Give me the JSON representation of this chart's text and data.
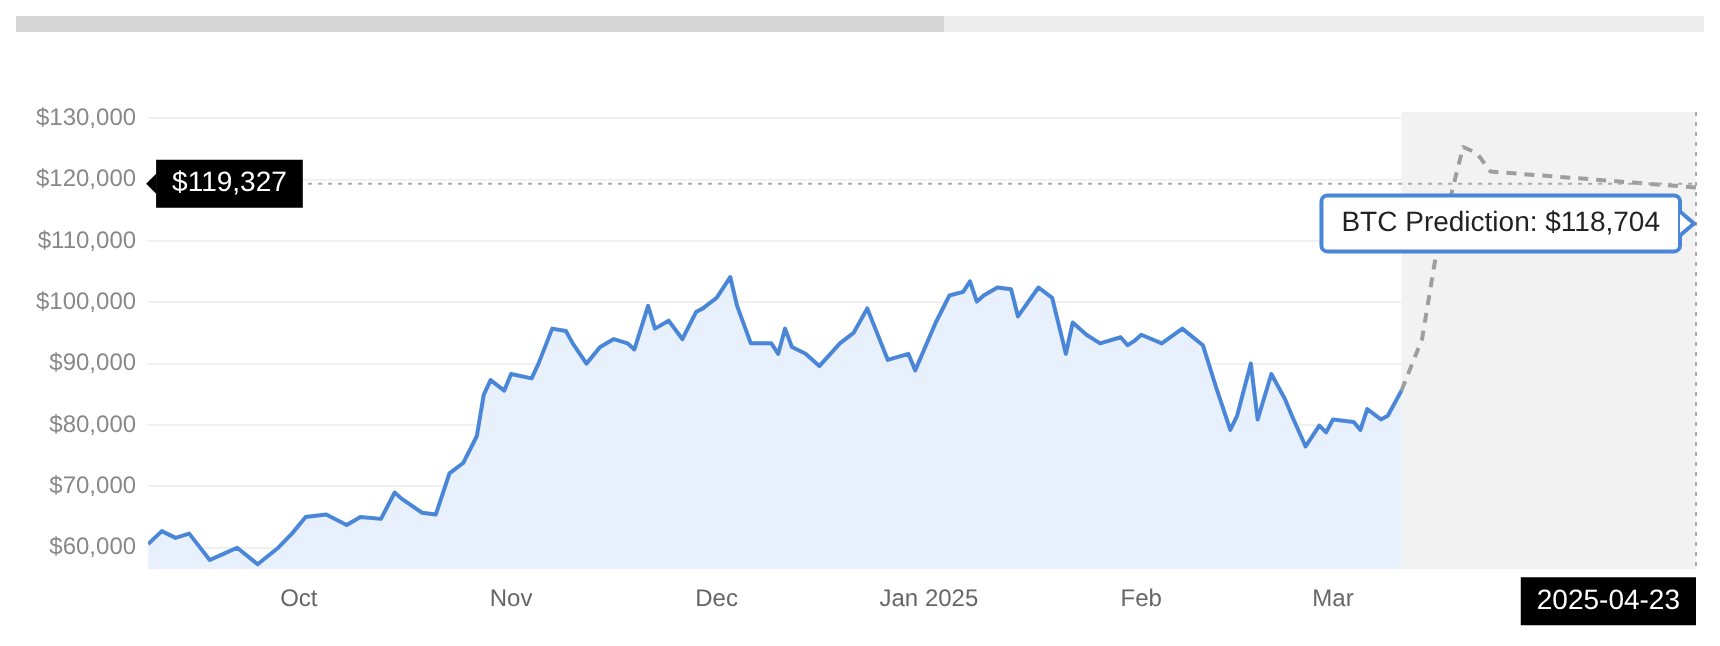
{
  "chart_data": {
    "type": "area",
    "xlim": [
      "2024-09-09",
      "2025-04-23"
    ],
    "xticks": [
      {
        "value": "2024-10-01",
        "label": "Oct"
      },
      {
        "value": "2024-11-01",
        "label": "Nov"
      },
      {
        "value": "2024-12-01",
        "label": "Dec"
      },
      {
        "value": "2025-01-01",
        "label": "Jan 2025"
      },
      {
        "value": "2025-02-01",
        "label": "Feb"
      },
      {
        "value": "2025-03-01",
        "label": "Mar"
      }
    ],
    "ylim": [
      56500,
      131000
    ],
    "yticks": [
      {
        "value": 60000,
        "label": "$60,000"
      },
      {
        "value": 70000,
        "label": "$70,000"
      },
      {
        "value": 80000,
        "label": "$80,000"
      },
      {
        "value": 90000,
        "label": "$90,000"
      },
      {
        "value": 100000,
        "label": "$100,000"
      },
      {
        "value": 110000,
        "label": "$110,000"
      },
      {
        "value": 120000,
        "label": "$120,000"
      },
      {
        "value": 130000,
        "label": "$130,000"
      }
    ],
    "grid": "y",
    "marker": "none",
    "series": [
      {
        "type": "area",
        "color": "#4a86d8",
        "x": [
          "2024-09-09",
          "2024-09-11",
          "2024-09-13",
          "2024-09-15",
          "2024-09-18",
          "2024-09-20",
          "2024-09-22",
          "2024-09-25",
          "2024-09-28",
          "2024-09-30",
          "2024-10-02",
          "2024-10-05",
          "2024-10-08",
          "2024-10-10",
          "2024-10-13",
          "2024-10-15",
          "2024-10-16",
          "2024-10-19",
          "2024-10-21",
          "2024-10-23",
          "2024-10-25",
          "2024-10-27",
          "2024-10-28",
          "2024-10-29",
          "2024-10-31",
          "2024-11-01",
          "2024-11-04",
          "2024-11-05",
          "2024-11-07",
          "2024-11-09",
          "2024-11-10",
          "2024-11-12",
          "2024-11-14",
          "2024-11-16",
          "2024-11-18",
          "2024-11-19",
          "2024-11-21",
          "2024-11-22",
          "2024-11-24",
          "2024-11-26",
          "2024-11-28",
          "2024-11-29",
          "2024-12-01",
          "2024-12-03",
          "2024-12-04",
          "2024-12-06",
          "2024-12-09",
          "2024-12-10",
          "2024-12-11",
          "2024-12-12",
          "2024-12-14",
          "2024-12-16",
          "2024-12-19",
          "2024-12-21",
          "2024-12-23",
          "2024-12-26",
          "2024-12-29",
          "2024-12-30",
          "2025-01-02",
          "2025-01-04",
          "2025-01-06",
          "2025-01-07",
          "2025-01-08",
          "2025-01-09",
          "2025-01-11",
          "2025-01-13",
          "2025-01-14",
          "2025-01-17",
          "2025-01-19",
          "2025-01-21",
          "2025-01-22",
          "2025-01-24",
          "2025-01-26",
          "2025-01-29",
          "2025-01-30",
          "2025-01-31",
          "2025-02-01",
          "2025-02-04",
          "2025-02-07",
          "2025-02-10",
          "2025-02-12",
          "2025-02-13",
          "2025-02-14",
          "2025-02-15",
          "2025-02-17",
          "2025-02-18",
          "2025-02-20",
          "2025-02-22",
          "2025-02-23",
          "2025-02-25",
          "2025-02-27",
          "2025-02-28",
          "2025-03-01",
          "2025-03-04",
          "2025-03-05",
          "2025-03-06",
          "2025-03-08",
          "2025-03-09",
          "2025-03-11"
        ],
        "values": [
          60600,
          62700,
          61600,
          62300,
          58000,
          59000,
          60000,
          57300,
          60000,
          62300,
          65000,
          65400,
          63700,
          65000,
          64700,
          69000,
          68000,
          65700,
          65400,
          72100,
          73800,
          78200,
          84900,
          87300,
          85600,
          88300,
          87600,
          90000,
          95700,
          95300,
          93300,
          90000,
          92700,
          94000,
          93300,
          92300,
          99400,
          95700,
          97000,
          94000,
          98400,
          99000,
          100700,
          104100,
          99400,
          93300,
          93300,
          91600,
          95700,
          92700,
          91600,
          89600,
          93300,
          95000,
          99000,
          90600,
          91600,
          88900,
          96700,
          101100,
          101700,
          103400,
          100100,
          101100,
          102400,
          102100,
          97700,
          102400,
          100700,
          91600,
          96700,
          94700,
          93300,
          94300,
          93000,
          93700,
          94700,
          93300,
          95700,
          93000,
          85900,
          82600,
          79200,
          81500,
          90000,
          80900,
          88300,
          84200,
          81500,
          76500,
          79900,
          78800,
          80900,
          80500,
          79200,
          82600,
          80900,
          81500,
          85600
        ]
      },
      {
        "type": "line",
        "color": "#9e9e9e",
        "line_style": "dashed",
        "x": [
          "2025-03-11",
          "2025-03-14",
          "2025-03-16",
          "2025-03-19",
          "2025-03-20",
          "2025-03-22",
          "2025-03-24",
          "2025-04-23"
        ],
        "values": [
          85600,
          94000,
          107400,
          120900,
          125300,
          124300,
          121300,
          118704
        ]
      }
    ],
    "bands": [
      {
        "axis": "x",
        "from": "2025-03-11",
        "to": "2025-04-23",
        "color": "#f2f2f2"
      }
    ],
    "ref_lines": [
      {
        "axis": "y",
        "value": 119327,
        "label": "$119,327",
        "line_style": "dotted"
      },
      {
        "axis": "x",
        "value": "2025-04-23",
        "label": "2025-04-23",
        "line_style": "dotted"
      }
    ],
    "annotations": [
      {
        "text": "BTC Prediction: $118,704",
        "x": "2025-04-23",
        "y": 118704
      }
    ]
  }
}
